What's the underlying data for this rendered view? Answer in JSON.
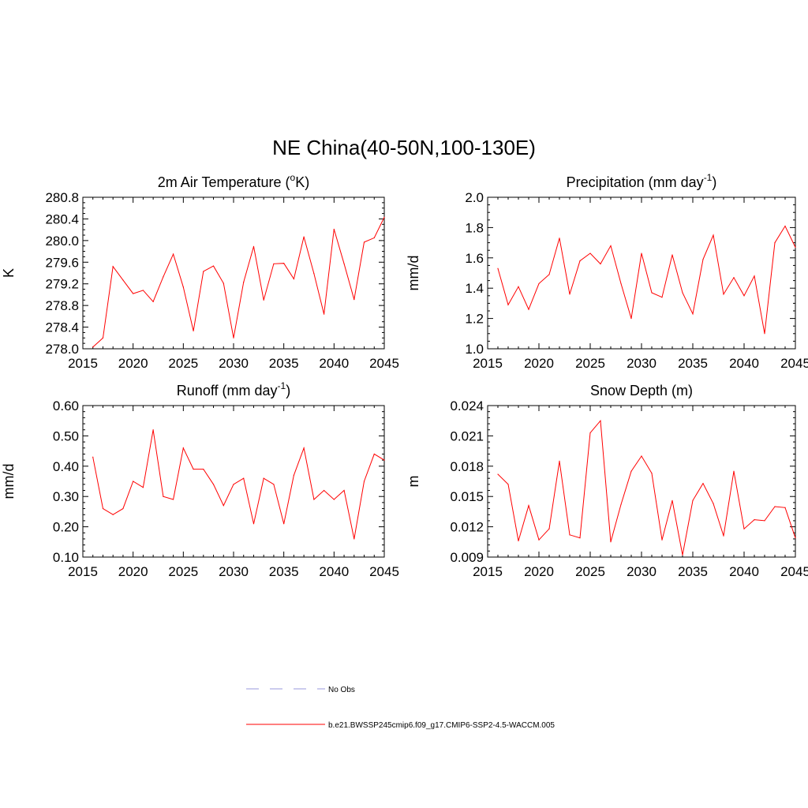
{
  "figure": {
    "title": "NE China(40-50N,100-130E)"
  },
  "legend": {
    "entries": [
      {
        "label": "No Obs",
        "color": "#9999dd",
        "style": "dashed"
      },
      {
        "label": "b.e21.BWSSP245cmip6.f09_g17.CMIP6-SSP2-4.5-WACCM.005",
        "color": "#ff0000",
        "style": "solid"
      }
    ]
  },
  "chart_data": [
    {
      "type": "line",
      "title": "2m Air Temperature (",
      "title_sup": "o",
      "title_suffix": "K)",
      "ylabel": "K",
      "xlabel": "",
      "xlim": [
        2015,
        2045
      ],
      "ylim": [
        278.0,
        280.8
      ],
      "xticks": [
        2015,
        2020,
        2025,
        2030,
        2035,
        2040,
        2045
      ],
      "yticks": [
        278.0,
        278.4,
        278.8,
        279.2,
        279.6,
        280.0,
        280.4,
        280.8
      ],
      "ytick_labels": [
        "278.0",
        "278.4",
        "278.8",
        "279.2",
        "279.6",
        "280.0",
        "280.4",
        "280.8"
      ],
      "yminor_step": 0.1,
      "series": [
        {
          "name": "b.e21.BWSSP245cmip6.f09_g17.CMIP6-SSP2-4.5-WACCM.005",
          "color": "#ff0000",
          "x": [
            2016,
            2017,
            2018,
            2019,
            2020,
            2021,
            2022,
            2023,
            2024,
            2025,
            2026,
            2027,
            2028,
            2029,
            2030,
            2031,
            2032,
            2033,
            2034,
            2035,
            2036,
            2037,
            2038,
            2039,
            2040,
            2041,
            2042,
            2043,
            2044,
            2045
          ],
          "values": [
            278.03,
            278.2,
            279.52,
            279.27,
            279.02,
            279.08,
            278.87,
            279.33,
            279.75,
            279.14,
            278.33,
            279.43,
            279.53,
            279.21,
            278.2,
            279.23,
            279.89,
            278.9,
            279.57,
            279.58,
            279.29,
            280.07,
            279.39,
            278.64,
            280.21,
            279.57,
            278.91,
            279.97,
            280.05,
            280.43
          ]
        }
      ]
    },
    {
      "type": "line",
      "title": "Precipitation (mm day",
      "title_sup": "-1",
      "title_suffix": ")",
      "ylabel": "mm/d",
      "xlabel": "",
      "xlim": [
        2015,
        2045
      ],
      "ylim": [
        1.0,
        2.0
      ],
      "xticks": [
        2015,
        2020,
        2025,
        2030,
        2035,
        2040,
        2045
      ],
      "yticks": [
        1.0,
        1.2,
        1.4,
        1.6,
        1.8,
        2.0
      ],
      "ytick_labels": [
        "1.0",
        "1.2",
        "1.4",
        "1.6",
        "1.8",
        "2.0"
      ],
      "yminor_step": 0.05,
      "series": [
        {
          "name": "b.e21.BWSSP245cmip6.f09_g17.CMIP6-SSP2-4.5-WACCM.005",
          "color": "#ff0000",
          "x": [
            2016,
            2017,
            2018,
            2019,
            2020,
            2021,
            2022,
            2023,
            2024,
            2025,
            2026,
            2027,
            2028,
            2029,
            2030,
            2031,
            2032,
            2033,
            2034,
            2035,
            2036,
            2037,
            2038,
            2039,
            2040,
            2041,
            2042,
            2043,
            2044,
            2045
          ],
          "values": [
            1.53,
            1.29,
            1.41,
            1.26,
            1.43,
            1.49,
            1.73,
            1.36,
            1.58,
            1.63,
            1.56,
            1.68,
            1.43,
            1.2,
            1.63,
            1.37,
            1.34,
            1.62,
            1.37,
            1.23,
            1.59,
            1.75,
            1.36,
            1.47,
            1.35,
            1.48,
            1.1,
            1.7,
            1.81,
            1.67
          ]
        }
      ]
    },
    {
      "type": "line",
      "title": "Runoff (mm day",
      "title_sup": "-1",
      "title_suffix": ")",
      "ylabel": "mm/d",
      "xlabel": "",
      "xlim": [
        2015,
        2045
      ],
      "ylim": [
        0.1,
        0.6
      ],
      "xticks": [
        2015,
        2020,
        2025,
        2030,
        2035,
        2040,
        2045
      ],
      "yticks": [
        0.1,
        0.2,
        0.3,
        0.4,
        0.5,
        0.6
      ],
      "ytick_labels": [
        "0.10",
        "0.20",
        "0.30",
        "0.40",
        "0.50",
        "0.60"
      ],
      "yminor_step": 0.02,
      "series": [
        {
          "name": "b.e21.BWSSP245cmip6.f09_g17.CMIP6-SSP2-4.5-WACCM.005",
          "color": "#ff0000",
          "x": [
            2016,
            2017,
            2018,
            2019,
            2020,
            2021,
            2022,
            2023,
            2024,
            2025,
            2026,
            2027,
            2028,
            2029,
            2030,
            2031,
            2032,
            2033,
            2034,
            2035,
            2036,
            2037,
            2038,
            2039,
            2040,
            2041,
            2042,
            2043,
            2044,
            2045
          ],
          "values": [
            0.43,
            0.26,
            0.24,
            0.26,
            0.35,
            0.33,
            0.52,
            0.3,
            0.29,
            0.46,
            0.39,
            0.39,
            0.34,
            0.27,
            0.34,
            0.36,
            0.21,
            0.36,
            0.34,
            0.21,
            0.37,
            0.46,
            0.29,
            0.32,
            0.29,
            0.32,
            0.16,
            0.35,
            0.44,
            0.42
          ]
        }
      ]
    },
    {
      "type": "line",
      "title": "Snow Depth (m)",
      "title_sup": "",
      "title_suffix": "",
      "ylabel": "m",
      "xlabel": "",
      "xlim": [
        2015,
        2045
      ],
      "ylim": [
        0.009,
        0.024
      ],
      "xticks": [
        2015,
        2020,
        2025,
        2030,
        2035,
        2040,
        2045
      ],
      "yticks": [
        0.009,
        0.012,
        0.015,
        0.018,
        0.021,
        0.024
      ],
      "ytick_labels": [
        "0.009",
        "0.012",
        "0.015",
        "0.018",
        "0.021",
        "0.024"
      ],
      "yminor_step": 0.0006,
      "series": [
        {
          "name": "b.e21.BWSSP245cmip6.f09_g17.CMIP6-SSP2-4.5-WACCM.005",
          "color": "#ff0000",
          "x": [
            2016,
            2017,
            2018,
            2019,
            2020,
            2021,
            2022,
            2023,
            2024,
            2025,
            2026,
            2027,
            2028,
            2029,
            2030,
            2031,
            2032,
            2033,
            2034,
            2035,
            2036,
            2037,
            2038,
            2039,
            2040,
            2041,
            2042,
            2043,
            2044,
            2045
          ],
          "values": [
            0.0172,
            0.0162,
            0.0106,
            0.0141,
            0.0107,
            0.0118,
            0.0185,
            0.0112,
            0.0109,
            0.0213,
            0.0225,
            0.0105,
            0.0142,
            0.0175,
            0.019,
            0.0173,
            0.0107,
            0.0146,
            0.0092,
            0.0146,
            0.0163,
            0.0143,
            0.0111,
            0.0175,
            0.0118,
            0.0127,
            0.0126,
            0.014,
            0.0139,
            0.0109
          ]
        }
      ]
    }
  ]
}
